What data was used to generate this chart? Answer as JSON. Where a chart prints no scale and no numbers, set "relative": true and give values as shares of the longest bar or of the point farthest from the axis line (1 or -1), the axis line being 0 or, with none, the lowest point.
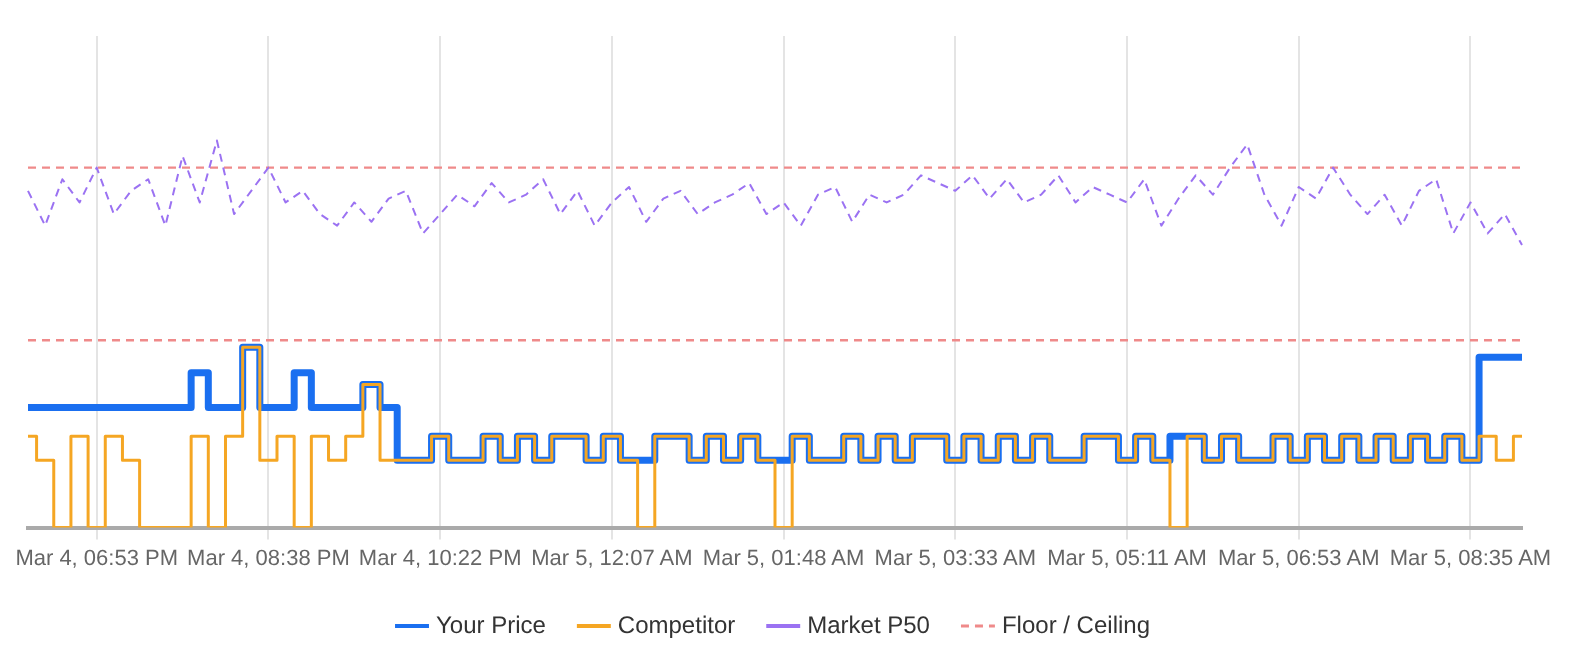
{
  "chart_data": {
    "type": "line",
    "relative": true,
    "grid": "x",
    "legend": "bottom",
    "marker": "none",
    "categories": [
      null,
      null,
      null,
      null,
      "Mar 4, 06:53 PM",
      null,
      null,
      null,
      null,
      null,
      null,
      null,
      null,
      null,
      "Mar 4, 08:38 PM",
      null,
      null,
      null,
      null,
      null,
      null,
      null,
      null,
      null,
      "Mar 4, 10:22 PM",
      null,
      null,
      null,
      null,
      null,
      null,
      null,
      null,
      null,
      "Mar 5, 12:07 AM",
      null,
      null,
      null,
      null,
      null,
      null,
      null,
      null,
      null,
      "Mar 5, 01:48 AM",
      null,
      null,
      null,
      null,
      null,
      null,
      null,
      null,
      null,
      "Mar 5, 03:33 AM",
      null,
      null,
      null,
      null,
      null,
      null,
      null,
      null,
      null,
      "Mar 5, 05:11 AM",
      null,
      null,
      null,
      null,
      null,
      null,
      null,
      null,
      null,
      "Mar 5, 06:53 AM",
      null,
      null,
      null,
      null,
      null,
      null,
      null,
      null,
      null,
      "Mar 5, 08:35 AM",
      null,
      null,
      null
    ],
    "series": [
      {
        "name": "Your Price",
        "type": "step",
        "color": "#1a6ff0",
        "line_style": "solid",
        "values": [
          0.31,
          0.31,
          0.31,
          0.31,
          0.31,
          0.31,
          0.31,
          0.31,
          0.31,
          0.31,
          0.4,
          0.31,
          0.31,
          0.466,
          0.31,
          0.31,
          0.4,
          0.31,
          0.31,
          0.31,
          0.37,
          0.31,
          0.174,
          0.174,
          0.236,
          0.174,
          0.174,
          0.236,
          0.174,
          0.236,
          0.174,
          0.236,
          0.236,
          0.174,
          0.236,
          0.174,
          0.174,
          0.236,
          0.236,
          0.174,
          0.236,
          0.174,
          0.236,
          0.174,
          0.174,
          0.236,
          0.174,
          0.174,
          0.236,
          0.174,
          0.236,
          0.174,
          0.236,
          0.236,
          0.174,
          0.236,
          0.174,
          0.236,
          0.174,
          0.236,
          0.174,
          0.174,
          0.236,
          0.236,
          0.174,
          0.236,
          0.174,
          0.236,
          0.236,
          0.174,
          0.236,
          0.174,
          0.174,
          0.236,
          0.174,
          0.236,
          0.174,
          0.236,
          0.174,
          0.236,
          0.174,
          0.236,
          0.174,
          0.236,
          0.174,
          0.44,
          0.44,
          0.44
        ]
      },
      {
        "name": "Competitor",
        "type": "step",
        "color": "#f5a623",
        "line_style": "solid",
        "values": [
          0.236,
          0.174,
          0,
          0.236,
          0,
          0.236,
          0.174,
          0,
          0,
          0,
          0.236,
          0,
          0.236,
          0.466,
          0.174,
          0.236,
          0,
          0.236,
          0.174,
          0.236,
          0.37,
          0.174,
          0.174,
          0.174,
          0.236,
          0.174,
          0.174,
          0.236,
          0.174,
          0.236,
          0.174,
          0.236,
          0.236,
          0.174,
          0.236,
          0.174,
          0,
          0.236,
          0.236,
          0.174,
          0.236,
          0.174,
          0.236,
          0.174,
          0,
          0.236,
          0.174,
          0.174,
          0.236,
          0.174,
          0.236,
          0.174,
          0.236,
          0.236,
          0.174,
          0.236,
          0.174,
          0.236,
          0.174,
          0.236,
          0.174,
          0.174,
          0.236,
          0.236,
          0.174,
          0.236,
          0.174,
          0,
          0.236,
          0.174,
          0.236,
          0.174,
          0.174,
          0.236,
          0.174,
          0.236,
          0.174,
          0.236,
          0.174,
          0.236,
          0.174,
          0.236,
          0.174,
          0.236,
          0.174,
          0.236,
          0.174,
          0.236
        ]
      },
      {
        "name": "Market P50",
        "type": "line",
        "color": "#9b72f2",
        "line_style": "dashed",
        "values": [
          0.87,
          0.78,
          0.9,
          0.84,
          0.93,
          0.81,
          0.87,
          0.9,
          0.78,
          0.96,
          0.84,
          1,
          0.81,
          0.87,
          0.93,
          0.84,
          0.87,
          0.81,
          0.78,
          0.84,
          0.79,
          0.85,
          0.87,
          0.76,
          0.81,
          0.86,
          0.83,
          0.89,
          0.84,
          0.86,
          0.9,
          0.81,
          0.87,
          0.78,
          0.84,
          0.88,
          0.79,
          0.85,
          0.87,
          0.81,
          0.84,
          0.86,
          0.89,
          0.81,
          0.84,
          0.78,
          0.86,
          0.88,
          0.79,
          0.86,
          0.84,
          0.86,
          0.91,
          0.89,
          0.87,
          0.91,
          0.85,
          0.9,
          0.84,
          0.86,
          0.91,
          0.84,
          0.88,
          0.86,
          0.84,
          0.9,
          0.78,
          0.85,
          0.91,
          0.86,
          0.93,
          0.99,
          0.86,
          0.78,
          0.88,
          0.85,
          0.93,
          0.86,
          0.81,
          0.86,
          0.78,
          0.87,
          0.9,
          0.76,
          0.84,
          0.76,
          0.81,
          0.73
        ]
      }
    ],
    "ref_lines": [
      {
        "axis": "y",
        "value": 0.93,
        "label": "Floor / Ceiling",
        "color": "#ef8a8a",
        "line_style": "dashed"
      },
      {
        "axis": "y",
        "value": 0.484,
        "color": "#ef8a8a",
        "line_style": "dashed"
      }
    ]
  }
}
